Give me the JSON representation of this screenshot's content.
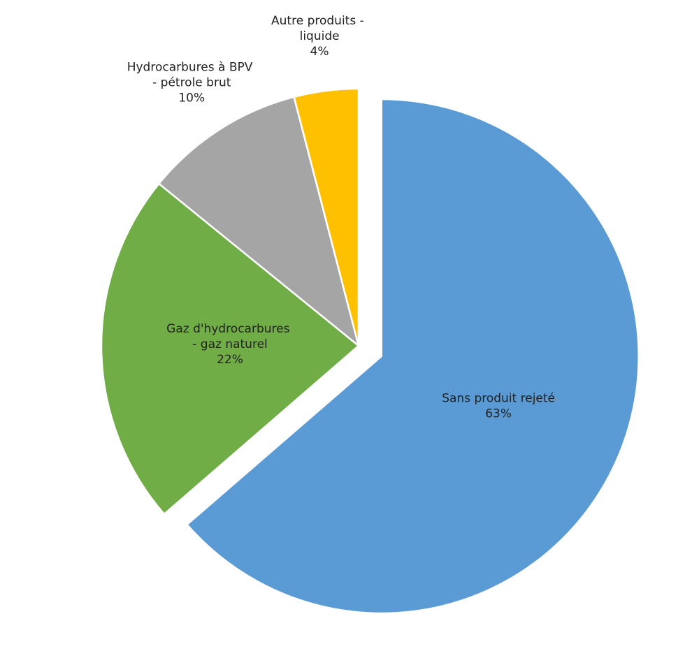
{
  "chart_data": {
    "type": "pie",
    "categories": [
      "Sans produit rejeté",
      "Gaz d'hydrocarbures - gaz naturel",
      "Hydrocarbures à BPV - pétrole brut",
      "Autre produits - liquide"
    ],
    "values": [
      63,
      22,
      10,
      4
    ],
    "value_labels": [
      "63%",
      "22%",
      "10%",
      "4%"
    ],
    "colors": [
      "#5b9bd5",
      "#70ad47",
      "#a5a5a5",
      "#ffc000"
    ],
    "exploded": [
      true,
      false,
      false,
      false
    ]
  }
}
